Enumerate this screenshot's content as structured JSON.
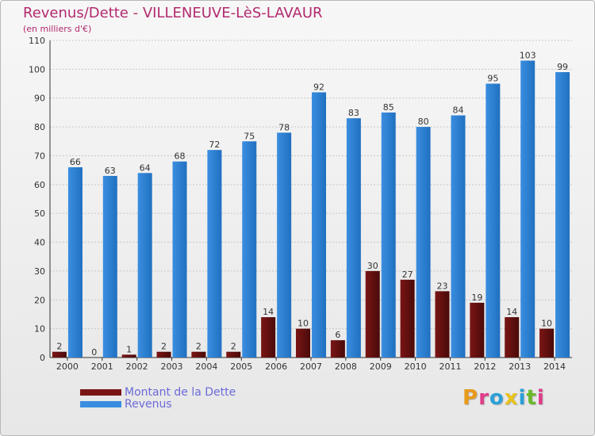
{
  "title": "Revenus/Dette - VILLENEUVE-LèS-LAVAUR",
  "subtitle": "(en milliers d'€)",
  "logo_text": "Proxiti",
  "chart_data": {
    "type": "bar",
    "title": "Revenus/Dette - VILLENEUVE-LèS-LAVAUR",
    "subtitle": "(en milliers d'€)",
    "categories": [
      "2000",
      "2001",
      "2002",
      "2003",
      "2004",
      "2005",
      "2006",
      "2007",
      "2008",
      "2009",
      "2010",
      "2011",
      "2012",
      "2013",
      "2014"
    ],
    "series": [
      {
        "name": "Montant de la Dette",
        "color": "#7a1515",
        "values": [
          2,
          0,
          1,
          2,
          2,
          2,
          14,
          10,
          6,
          30,
          27,
          23,
          19,
          14,
          10
        ]
      },
      {
        "name": "Revenus",
        "color": "#3a8ee0",
        "values": [
          66,
          63,
          64,
          68,
          72,
          75,
          78,
          92,
          83,
          85,
          80,
          84,
          95,
          103,
          99
        ]
      }
    ],
    "ylim": [
      0,
      110
    ],
    "yticks": [
      0,
      10,
      20,
      30,
      40,
      50,
      60,
      70,
      80,
      90,
      100,
      110
    ],
    "grid": true,
    "legend_position": "bottom-left"
  },
  "colors": {
    "title": "#b22a6e",
    "logo": [
      "#e89a1a",
      "#e03c8a",
      "#2aa0d8",
      "#e8c21a",
      "#2aa0d8",
      "#6ab82a",
      "#e03c8a"
    ]
  }
}
